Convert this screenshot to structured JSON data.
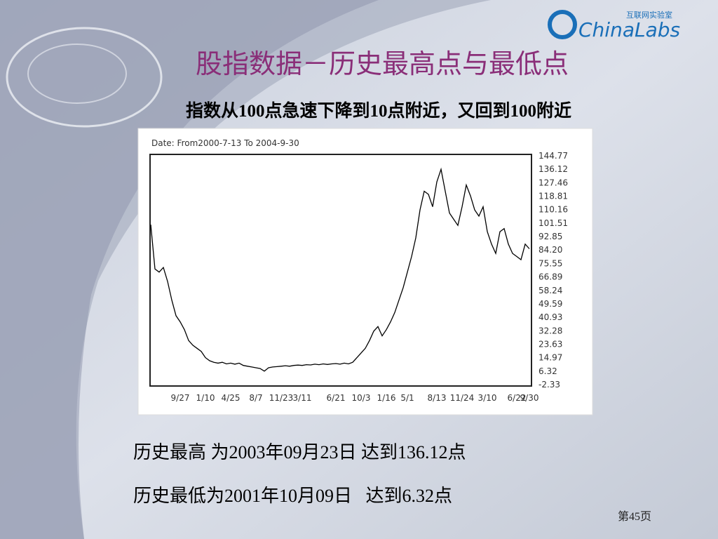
{
  "logo": {
    "name": "ChinaLabs",
    "tagline": "互联网实验室"
  },
  "slide": {
    "title": "股指数据－历史最高点与最低点",
    "subtitle": "指数从100点急速下降到10点附近，又回到100附近",
    "notes": [
      "历史最高 为2003年09月23日 达到136.12点",
      "历史最低为2001年10月09日   达到6.32点"
    ],
    "page": "第45页"
  },
  "chart_data": {
    "type": "line",
    "title": "Date: From2000-7-13 To 2004-9-30",
    "categories": [
      null,
      null,
      null,
      null,
      null,
      null,
      null,
      "9/27",
      null,
      null,
      null,
      null,
      null,
      "1/10",
      null,
      null,
      null,
      null,
      null,
      "4/25",
      null,
      null,
      null,
      null,
      null,
      "8/7",
      null,
      null,
      null,
      null,
      null,
      "11/23",
      null,
      null,
      null,
      null,
      "3/11",
      null,
      null,
      null,
      null,
      null,
      null,
      null,
      "6/21",
      null,
      null,
      null,
      null,
      null,
      "10/3",
      null,
      null,
      null,
      null,
      null,
      "1/16",
      null,
      null,
      null,
      null,
      "5/1",
      null,
      null,
      null,
      null,
      null,
      null,
      "8/13",
      null,
      null,
      null,
      null,
      null,
      "11/24",
      null,
      null,
      null,
      null,
      null,
      "3/10",
      null,
      null,
      null,
      null,
      null,
      null,
      "6/22",
      null,
      null,
      "9/30"
    ],
    "values": [
      100.5,
      72,
      70,
      73,
      64,
      52,
      42,
      38,
      33,
      26,
      23,
      21,
      19,
      15,
      13,
      12,
      11.5,
      12,
      11,
      11.5,
      10.8,
      11.5,
      10,
      9.5,
      9,
      8.5,
      8,
      6.32,
      8.5,
      9,
      9.2,
      9.5,
      9.8,
      9.5,
      10,
      10.2,
      10,
      10.5,
      10.3,
      10.8,
      10.5,
      11,
      10.6,
      11,
      11.2,
      10.8,
      11.5,
      11,
      12,
      15,
      18,
      21,
      26,
      32,
      35,
      29,
      33,
      38,
      44,
      52,
      60,
      70,
      80,
      92,
      110,
      122,
      120,
      112,
      128,
      136.12,
      122,
      108,
      104,
      100,
      112,
      126,
      119,
      110,
      106,
      112,
      96,
      88,
      82,
      96,
      98,
      88,
      82,
      80,
      78,
      88,
      85
    ],
    "color": "#000000",
    "ylim": [
      -2.33,
      144.77
    ],
    "yticks": [
      144.77,
      136.12,
      127.46,
      118.81,
      110.16,
      101.51,
      92.85,
      {
        "value": 84.2,
        "label": "84.20"
      },
      75.55,
      66.89,
      58.24,
      49.59,
      40.93,
      32.28,
      23.63,
      14.97,
      6.32,
      -2.33
    ],
    "grid": false
  }
}
